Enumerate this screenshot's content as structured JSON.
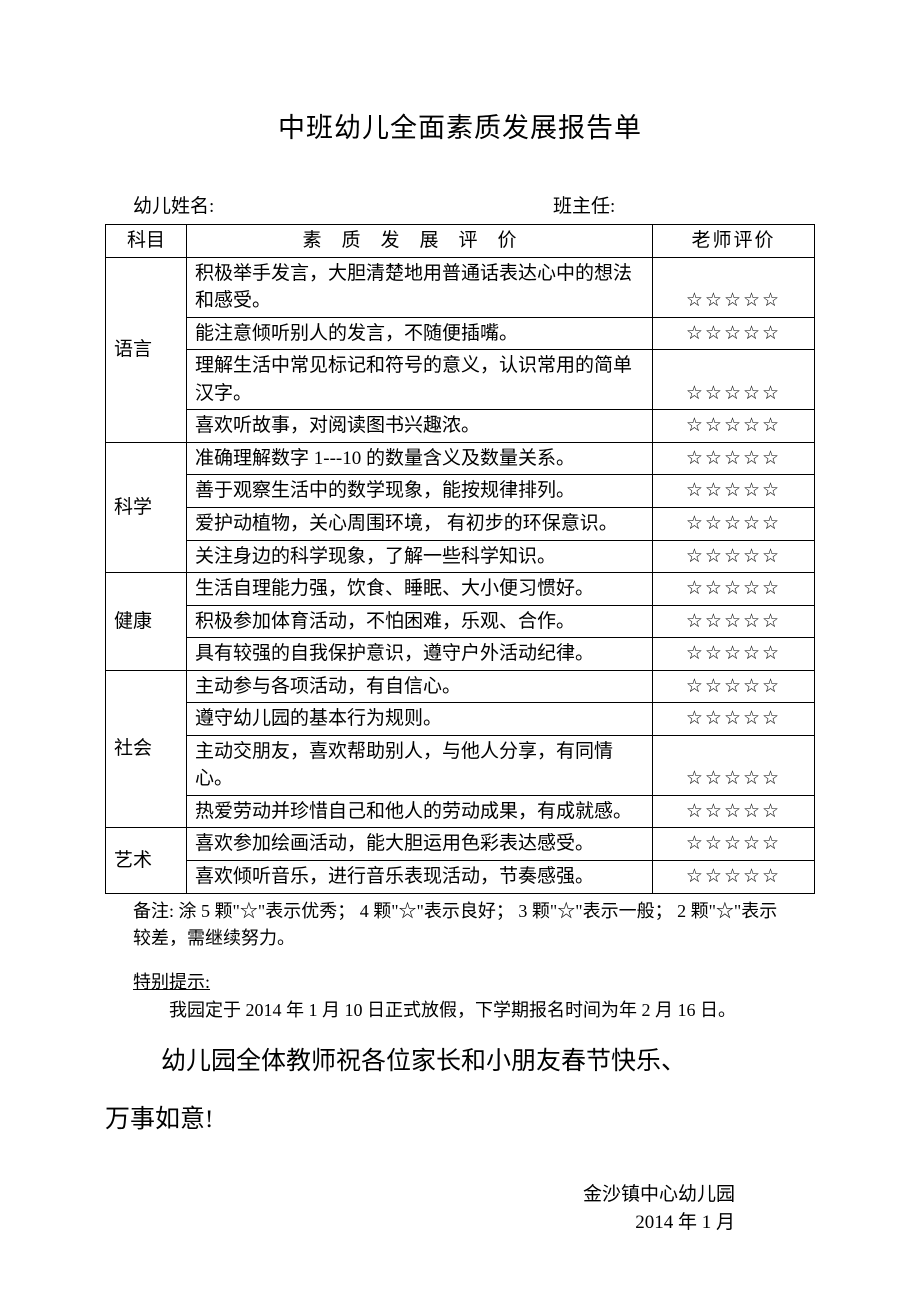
{
  "title": "中班幼儿全面素质发展报告单",
  "info": {
    "name_label": "幼儿姓名:",
    "teacher_label": "班主任:"
  },
  "table": {
    "headers": {
      "subject": "科目",
      "desc": "素质发展评价",
      "rating": "老师评价"
    },
    "star": "☆☆☆☆☆",
    "sections": [
      {
        "subject": "语言",
        "items": [
          "积极举手发言，大胆清楚地用普通话表达心中的想法和感受。",
          "能注意倾听别人的发言，不随便插嘴。",
          "理解生活中常见标记和符号的意义，认识常用的简单汉字。",
          "喜欢听故事，对阅读图书兴趣浓。"
        ]
      },
      {
        "subject": "科学",
        "items": [
          "准确理解数字 1---10 的数量含义及数量关系。",
          "善于观察生活中的数学现象，能按规律排列。",
          "爱护动植物，关心周围环境， 有初步的环保意识。",
          "关注身边的科学现象，了解一些科学知识。"
        ]
      },
      {
        "subject": "健康",
        "items": [
          "生活自理能力强，饮食、睡眠、大小便习惯好。",
          "积极参加体育活动，不怕困难，乐观、合作。",
          "具有较强的自我保护意识，遵守户外活动纪律。"
        ]
      },
      {
        "subject": "社会",
        "items": [
          "主动参与各项活动，有自信心。",
          "遵守幼儿园的基本行为规则。",
          "主动交朋友，喜欢帮助别人，与他人分享，有同情心。",
          "热爱劳动并珍惜自己和他人的劳动成果，有成就感。"
        ]
      },
      {
        "subject": "艺术",
        "items": [
          "喜欢参加绘画活动，能大胆运用色彩表达感受。",
          "喜欢倾听音乐，进行音乐表现活动，节奏感强。"
        ]
      }
    ]
  },
  "note": "备注: 涂 5 颗\"☆\"表示优秀； 4 颗\"☆\"表示良好； 3 颗\"☆\"表示一般； 2 颗\"☆\"表示较差，需继续努力。",
  "hint": {
    "label": "特别提示:",
    "body": "我园定于 2014 年 1 月 10 日正式放假，下学期报名时间为年  2 月 16 日。"
  },
  "greeting_line1": "幼儿园全体教师祝各位家长和小朋友春节快乐、",
  "greeting_line2": "万事如意!",
  "footer": {
    "school": "金沙镇中心幼儿园",
    "date": "2014 年 1 月"
  }
}
